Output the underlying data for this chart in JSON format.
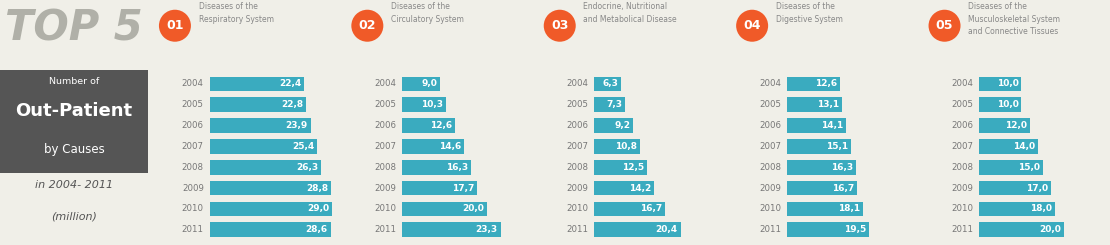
{
  "years": [
    "2004",
    "2005",
    "2006",
    "2007",
    "2008",
    "2009",
    "2010",
    "2011"
  ],
  "categories": [
    {
      "num": "01",
      "title": "Diseases of the\nRespiratory System",
      "values": [
        22.4,
        22.8,
        23.9,
        25.4,
        26.3,
        28.8,
        29.0,
        28.6
      ]
    },
    {
      "num": "02",
      "title": "Diseases of the\nCirculatory System",
      "values": [
        9.0,
        10.3,
        12.6,
        14.6,
        16.3,
        17.7,
        20.0,
        23.3
      ]
    },
    {
      "num": "03",
      "title": "Endocrine, Nutritional\nand Metabolical Disease",
      "values": [
        6.3,
        7.3,
        9.2,
        10.8,
        12.5,
        14.2,
        16.7,
        20.4
      ]
    },
    {
      "num": "04",
      "title": "Diseases of the\nDigestive System",
      "values": [
        12.6,
        13.1,
        14.1,
        15.1,
        16.3,
        16.7,
        18.1,
        19.5
      ]
    },
    {
      "num": "05",
      "title": "Diseases of the\nMusculoskeletal System\nand Connective Tissues",
      "values": [
        10.0,
        10.0,
        12.0,
        14.0,
        15.0,
        17.0,
        18.0,
        20.0
      ]
    }
  ],
  "bar_color": "#3aabbf",
  "year_color": "#777777",
  "title_color": "#888888",
  "num_bg_color": "#f05a28",
  "bg_color": "#f0efe8",
  "dark_box_color": "#555555",
  "top5_color": "#b0b0a8",
  "left_text_color": "#555555",
  "max_val": 30.0,
  "fig_width": 11.1,
  "fig_height": 2.45,
  "dpi": 100
}
